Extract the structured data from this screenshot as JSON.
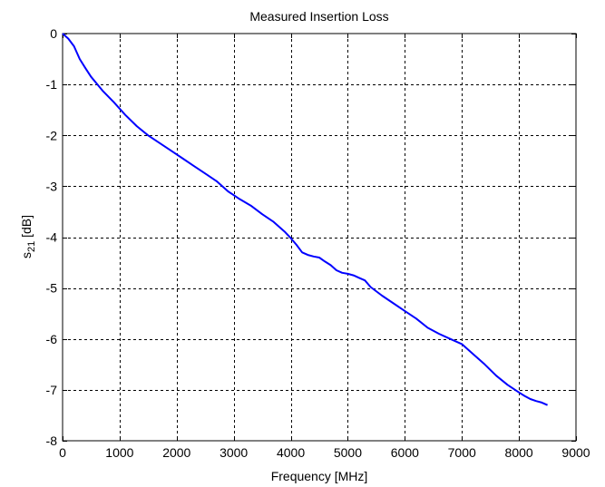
{
  "chart_data": {
    "type": "line",
    "title": "Measured Insertion Loss",
    "xlabel": "Frequency [MHz]",
    "ylabel_main": "s",
    "ylabel_sub": "21",
    "ylabel_rest": " [dB]",
    "xlim": [
      0,
      9000
    ],
    "ylim": [
      -8,
      0
    ],
    "xticks": [
      0,
      1000,
      2000,
      3000,
      4000,
      5000,
      6000,
      7000,
      8000,
      9000
    ],
    "yticks": [
      0,
      -1,
      -2,
      -3,
      -4,
      -5,
      -6,
      -7,
      -8
    ],
    "grid": true,
    "colors": {
      "series": "#0000ff",
      "axes": "#000000",
      "background": "#ffffff"
    },
    "series": [
      {
        "x": [
          0,
          100,
          200,
          300,
          400,
          500,
          700,
          900,
          1100,
          1300,
          1500,
          1700,
          1900,
          2100,
          2300,
          2500,
          2700,
          2900,
          3100,
          3300,
          3500,
          3700,
          3900,
          4000,
          4100,
          4200,
          4300,
          4400,
          4500,
          4600,
          4700,
          4800,
          4900,
          5000,
          5100,
          5200,
          5300,
          5400,
          5600,
          5800,
          6000,
          6200,
          6400,
          6600,
          6800,
          7000,
          7200,
          7400,
          7600,
          7800,
          8000,
          8100,
          8200,
          8300,
          8400,
          8500
        ],
        "y": [
          0,
          -0.1,
          -0.25,
          -0.5,
          -0.68,
          -0.85,
          -1.12,
          -1.35,
          -1.6,
          -1.82,
          -2.0,
          -2.15,
          -2.3,
          -2.45,
          -2.6,
          -2.75,
          -2.9,
          -3.1,
          -3.25,
          -3.38,
          -3.55,
          -3.7,
          -3.9,
          -4.02,
          -4.15,
          -4.3,
          -4.35,
          -4.38,
          -4.4,
          -4.48,
          -4.55,
          -4.65,
          -4.7,
          -4.72,
          -4.75,
          -4.8,
          -4.85,
          -4.98,
          -5.15,
          -5.3,
          -5.45,
          -5.6,
          -5.78,
          -5.9,
          -6.0,
          -6.1,
          -6.3,
          -6.5,
          -6.72,
          -6.9,
          -7.05,
          -7.12,
          -7.18,
          -7.22,
          -7.25,
          -7.3
        ]
      }
    ]
  }
}
